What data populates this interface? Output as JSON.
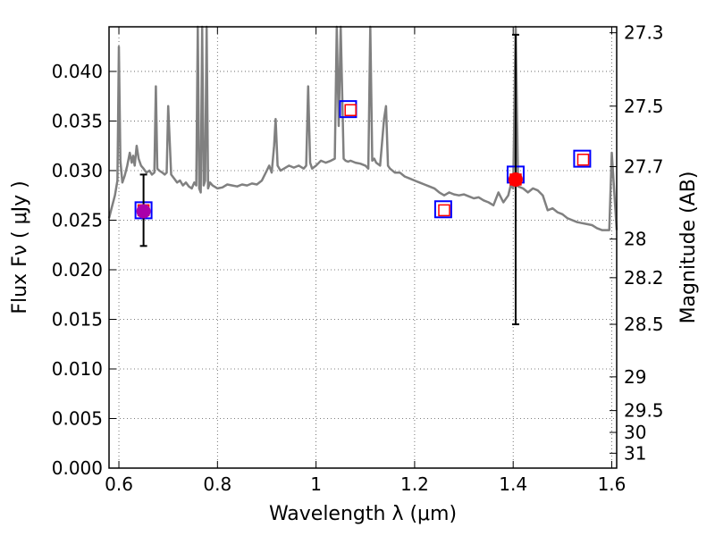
{
  "chart_data": {
    "type": "line",
    "title": "",
    "xlabel": "Wavelength  λ (μm)",
    "ylabel": "Flux  Fν  ( μJy )",
    "y2label": "Magnitude (AB)",
    "xlim": [
      0.58,
      1.61
    ],
    "ylim": [
      0.0,
      0.0445
    ],
    "x_ticks": [
      0.6,
      0.8,
      1.0,
      1.2,
      1.4,
      1.6
    ],
    "x_tick_labels": [
      "0.6",
      "0.8",
      "1",
      "1.2",
      "1.4",
      "1.6"
    ],
    "y_ticks": [
      0.0,
      0.005,
      0.01,
      0.015,
      0.02,
      0.025,
      0.03,
      0.035,
      0.04
    ],
    "y_tick_labels": [
      "0.000",
      "0.005",
      "0.010",
      "0.015",
      "0.020",
      "0.025",
      "0.030",
      "0.035",
      "0.040"
    ],
    "y2_ticks": [
      {
        "label": "27.3",
        "flux": 0.0439
      },
      {
        "label": "27.5",
        "flux": 0.0365
      },
      {
        "label": "27.7",
        "flux": 0.0304
      },
      {
        "label": "28",
        "flux": 0.0231
      },
      {
        "label": "28.2",
        "flux": 0.0192
      },
      {
        "label": "28.5",
        "flux": 0.0145
      },
      {
        "label": "29",
        "flux": 0.0092
      },
      {
        "label": "29.5",
        "flux": 0.0058
      },
      {
        "label": "30",
        "flux": 0.0036
      },
      {
        "label": "31",
        "flux": 0.0015
      }
    ],
    "grid": true,
    "series": [
      {
        "style": "line",
        "color": "#808080",
        "x": [
          0.58,
          0.585,
          0.592,
          0.597,
          0.6,
          0.603,
          0.607,
          0.612,
          0.617,
          0.622,
          0.626,
          0.629,
          0.632,
          0.636,
          0.64,
          0.645,
          0.65,
          0.656,
          0.662,
          0.667,
          0.672,
          0.675,
          0.678,
          0.682,
          0.688,
          0.693,
          0.697,
          0.7,
          0.706,
          0.712,
          0.718,
          0.724,
          0.73,
          0.736,
          0.742,
          0.748,
          0.753,
          0.757,
          0.76,
          0.763,
          0.766,
          0.769,
          0.772,
          0.775,
          0.778,
          0.781,
          0.785,
          0.79,
          0.8,
          0.81,
          0.82,
          0.83,
          0.84,
          0.85,
          0.86,
          0.87,
          0.88,
          0.89,
          0.9,
          0.905,
          0.91,
          0.915,
          0.918,
          0.922,
          0.928,
          0.935,
          0.945,
          0.955,
          0.965,
          0.975,
          0.98,
          0.984,
          0.988,
          0.992,
          1.0,
          1.01,
          1.02,
          1.03,
          1.038,
          1.042,
          1.046,
          1.05,
          1.056,
          1.06,
          1.065,
          1.07,
          1.08,
          1.09,
          1.1,
          1.106,
          1.11,
          1.114,
          1.118,
          1.122,
          1.13,
          1.138,
          1.142,
          1.146,
          1.15,
          1.16,
          1.17,
          1.18,
          1.19,
          1.2,
          1.21,
          1.22,
          1.23,
          1.24,
          1.25,
          1.26,
          1.27,
          1.28,
          1.29,
          1.3,
          1.31,
          1.32,
          1.33,
          1.34,
          1.35,
          1.36,
          1.37,
          1.38,
          1.39,
          1.395,
          1.4,
          1.405,
          1.41,
          1.42,
          1.43,
          1.44,
          1.45,
          1.46,
          1.47,
          1.48,
          1.49,
          1.5,
          1.51,
          1.52,
          1.53,
          1.54,
          1.55,
          1.56,
          1.57,
          1.58,
          1.59,
          1.595,
          1.6,
          1.61
        ],
        "values": [
          0.0252,
          0.0262,
          0.0275,
          0.029,
          0.0425,
          0.031,
          0.0288,
          0.0295,
          0.0305,
          0.0318,
          0.0308,
          0.0315,
          0.0305,
          0.0325,
          0.0312,
          0.0305,
          0.0302,
          0.0298,
          0.03,
          0.0296,
          0.0298,
          0.0385,
          0.0302,
          0.03,
          0.0298,
          0.0296,
          0.0298,
          0.0365,
          0.0296,
          0.0292,
          0.0288,
          0.029,
          0.0285,
          0.0288,
          0.0284,
          0.0282,
          0.0288,
          0.0285,
          0.0445,
          0.0282,
          0.0278,
          0.0445,
          0.0285,
          0.029,
          0.0445,
          0.0282,
          0.0288,
          0.0285,
          0.0282,
          0.0283,
          0.0286,
          0.0285,
          0.0284,
          0.0286,
          0.0285,
          0.0287,
          0.0286,
          0.029,
          0.03,
          0.0305,
          0.0298,
          0.0325,
          0.0352,
          0.0305,
          0.03,
          0.0302,
          0.0305,
          0.0303,
          0.0305,
          0.0302,
          0.0305,
          0.0385,
          0.0308,
          0.0302,
          0.0305,
          0.031,
          0.0308,
          0.031,
          0.0312,
          0.0445,
          0.0345,
          0.0445,
          0.0312,
          0.031,
          0.0309,
          0.031,
          0.0308,
          0.0307,
          0.0305,
          0.0302,
          0.0445,
          0.031,
          0.0312,
          0.0308,
          0.0305,
          0.0352,
          0.0365,
          0.0305,
          0.0302,
          0.0298,
          0.0298,
          0.0294,
          0.0292,
          0.029,
          0.0288,
          0.0286,
          0.0284,
          0.0282,
          0.0278,
          0.0275,
          0.0278,
          0.0276,
          0.0275,
          0.0276,
          0.0274,
          0.0272,
          0.0273,
          0.027,
          0.0268,
          0.0265,
          0.0278,
          0.0268,
          0.0275,
          0.0285,
          0.0282,
          0.0445,
          0.0284,
          0.0282,
          0.0278,
          0.0282,
          0.028,
          0.0275,
          0.026,
          0.0262,
          0.0258,
          0.0256,
          0.0252,
          0.025,
          0.0248,
          0.0247,
          0.0246,
          0.0245,
          0.0242,
          0.024,
          0.024,
          0.024,
          0.0318,
          0.024
        ]
      },
      {
        "style": "markers",
        "marker": "open-square",
        "color": "#0000ff",
        "x": [
          0.65,
          1.065,
          1.258,
          1.405,
          1.54
        ],
        "values": [
          0.026,
          0.0362,
          0.0261,
          0.0296,
          0.0312
        ]
      },
      {
        "style": "markers",
        "marker": "open-square-small",
        "color": "#ff0000",
        "x": [
          0.65,
          1.07,
          1.26,
          1.405,
          1.542
        ],
        "values": [
          0.026,
          0.0361,
          0.026,
          0.0291,
          0.0311
        ]
      },
      {
        "style": "markers",
        "marker": "filled-circle",
        "colors": [
          "#aa00aa",
          "#ff0000"
        ],
        "x": [
          0.65,
          1.405
        ],
        "values": [
          0.0259,
          0.0291
        ],
        "yerr_low": [
          0.0224,
          0.0145
        ],
        "yerr_high": [
          0.0296,
          0.0437
        ]
      }
    ]
  }
}
